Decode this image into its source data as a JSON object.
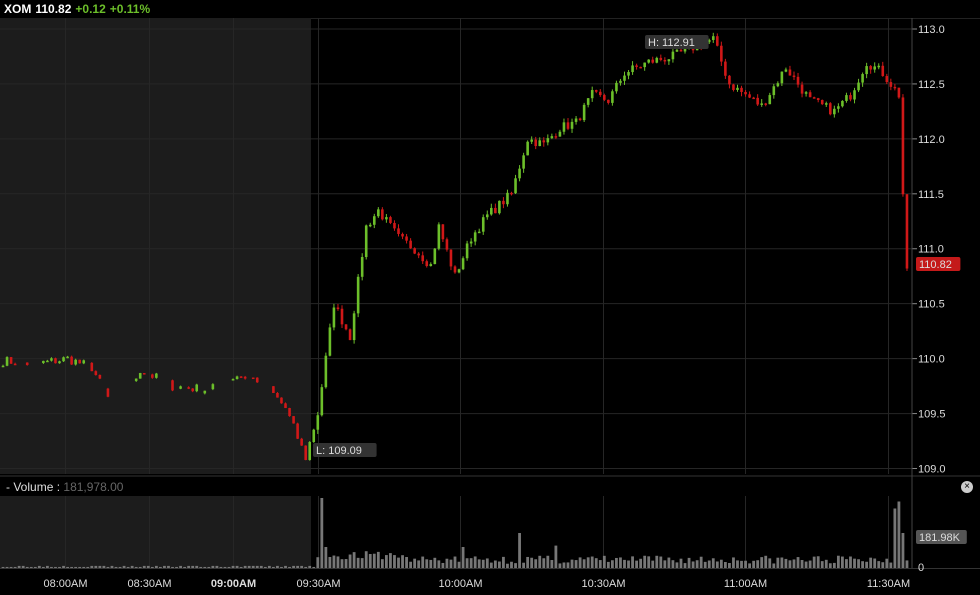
{
  "header": {
    "symbol": "XOM",
    "price": "110.82",
    "change": "+0.12",
    "change_pct": "+0.11%"
  },
  "volume_panel": {
    "label": "Volume",
    "value": "181,978.00",
    "close_icon": "close-icon"
  },
  "colors": {
    "up": "#6cbf2a",
    "down": "#d01818",
    "premarket_bg": "#1c1c1c",
    "grid": "#262626",
    "price_flag": "#c41a1a",
    "volume_bar": "#777777"
  },
  "chart_data": [
    {
      "type": "candlestick",
      "ylim": [
        108.95,
        113.1
      ],
      "y_ticks": [
        "113.0",
        "112.5",
        "112.0",
        "111.5",
        "111.0",
        "110.5",
        "110.0",
        "109.5",
        "109.0"
      ],
      "x_ticks": [
        "08:00AM",
        "08:30AM",
        "09:00AM",
        "09:30AM",
        "10:00AM",
        "10:30AM",
        "11:00AM",
        "11:30AM"
      ],
      "x_tick_bold": "09:00AM",
      "last_price_label": "110.82",
      "high_label": "H: 112.91",
      "low_label": "L: 109.09",
      "premarket_end": "09:30AM",
      "anchors": [
        {
          "i": 0,
          "v": 109.98
        },
        {
          "i": 8,
          "v": 109.95
        },
        {
          "i": 16,
          "v": 110.0
        },
        {
          "i": 22,
          "v": 109.92
        },
        {
          "i": 28,
          "v": 109.5
        },
        {
          "i": 34,
          "v": 109.9
        },
        {
          "i": 42,
          "v": 109.75
        },
        {
          "i": 50,
          "v": 109.72
        },
        {
          "i": 58,
          "v": 109.85
        },
        {
          "i": 64,
          "v": 109.8
        },
        {
          "i": 70,
          "v": 109.55
        },
        {
          "i": 75,
          "v": 109.1
        },
        {
          "i": 78,
          "v": 109.5
        },
        {
          "i": 82,
          "v": 110.5
        },
        {
          "i": 86,
          "v": 110.2
        },
        {
          "i": 90,
          "v": 111.2
        },
        {
          "i": 93,
          "v": 111.35
        },
        {
          "i": 98,
          "v": 111.1
        },
        {
          "i": 102,
          "v": 111.0
        },
        {
          "i": 106,
          "v": 110.85
        },
        {
          "i": 108,
          "v": 111.2
        },
        {
          "i": 112,
          "v": 110.75
        },
        {
          "i": 116,
          "v": 111.1
        },
        {
          "i": 120,
          "v": 111.3
        },
        {
          "i": 126,
          "v": 111.5
        },
        {
          "i": 130,
          "v": 112.0
        },
        {
          "i": 134,
          "v": 111.95
        },
        {
          "i": 138,
          "v": 112.1
        },
        {
          "i": 142,
          "v": 112.15
        },
        {
          "i": 146,
          "v": 112.4
        },
        {
          "i": 150,
          "v": 112.35
        },
        {
          "i": 154,
          "v": 112.6
        },
        {
          "i": 160,
          "v": 112.7
        },
        {
          "i": 166,
          "v": 112.75
        },
        {
          "i": 172,
          "v": 112.85
        },
        {
          "i": 176,
          "v": 112.91
        },
        {
          "i": 180,
          "v": 112.5
        },
        {
          "i": 188,
          "v": 112.3
        },
        {
          "i": 194,
          "v": 112.65
        },
        {
          "i": 200,
          "v": 112.35
        },
        {
          "i": 206,
          "v": 112.25
        },
        {
          "i": 210,
          "v": 112.4
        },
        {
          "i": 214,
          "v": 112.7
        },
        {
          "i": 218,
          "v": 112.6
        },
        {
          "i": 222,
          "v": 112.4
        },
        {
          "i": 223,
          "v": 111.5
        },
        {
          "i": 224,
          "v": 110.82
        }
      ]
    },
    {
      "type": "bar",
      "title": "Volume",
      "last_value_label": "181.98K",
      "zero_label": "0",
      "ylim": [
        0,
        1.0
      ],
      "spikes": [
        {
          "i": 79,
          "v": 1.0
        },
        {
          "i": 80,
          "v": 0.3
        },
        {
          "i": 128,
          "v": 0.5
        },
        {
          "i": 137,
          "v": 0.32
        },
        {
          "i": 114,
          "v": 0.3
        },
        {
          "i": 221,
          "v": 0.85
        },
        {
          "i": 222,
          "v": 0.95
        },
        {
          "i": 223,
          "v": 0.5
        }
      ]
    }
  ]
}
